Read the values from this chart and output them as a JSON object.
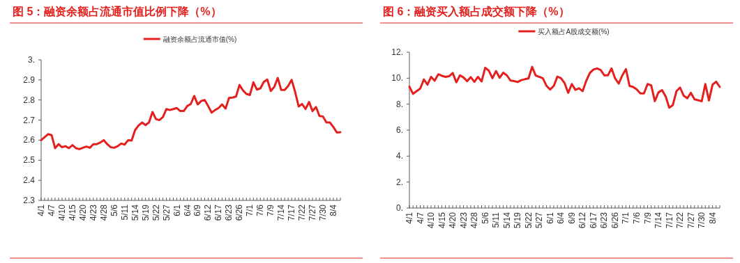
{
  "chart_data": [
    {
      "type": "line",
      "title": "图 5：融资余额占流通市值比例下降（%）",
      "legend": "top",
      "categories": [
        "4/1",
        null,
        null,
        "4/7",
        null,
        null,
        "4/10",
        null,
        null,
        "4/15",
        null,
        null,
        "4/20",
        null,
        null,
        "4/23",
        null,
        null,
        "4/28",
        null,
        null,
        "5/6",
        null,
        null,
        "5/11",
        null,
        null,
        "5/14",
        null,
        null,
        "5/19",
        null,
        null,
        "5/22",
        null,
        null,
        "5/27",
        null,
        null,
        "6/1",
        null,
        null,
        "6/4",
        null,
        null,
        "6/9",
        null,
        null,
        "6/12",
        null,
        null,
        "6/17",
        null,
        null,
        "6/23",
        null,
        null,
        "6/26",
        null,
        null,
        "7/1",
        null,
        null,
        "7/6",
        null,
        null,
        "7/9",
        null,
        null,
        "7/14",
        null,
        null,
        "7/17",
        null,
        null,
        "7/22",
        null,
        null,
        "7/27",
        null,
        null,
        "7/30",
        null,
        null,
        "8/4",
        null,
        null
      ],
      "series": [
        {
          "name": "融资余额占流通市值(%)",
          "color": "#e3201e",
          "values": [
            2.6,
            2.615,
            2.63,
            2.625,
            2.56,
            2.58,
            2.565,
            2.57,
            2.56,
            2.575,
            2.56,
            2.555,
            2.562,
            2.568,
            2.562,
            2.58,
            2.58,
            2.588,
            2.6,
            2.58,
            2.565,
            2.562,
            2.57,
            2.583,
            2.578,
            2.6,
            2.598,
            2.65,
            2.673,
            2.688,
            2.675,
            2.688,
            2.74,
            2.705,
            2.7,
            2.715,
            2.755,
            2.75,
            2.755,
            2.76,
            2.745,
            2.745,
            2.77,
            2.78,
            2.82,
            2.778,
            2.795,
            2.8,
            2.77,
            2.737,
            2.75,
            2.76,
            2.778,
            2.757,
            2.81,
            2.812,
            2.817,
            2.875,
            2.848,
            2.83,
            2.825,
            2.888,
            2.852,
            2.858,
            2.89,
            2.902,
            2.845,
            2.865,
            2.91,
            2.85,
            2.85,
            2.87,
            2.9,
            2.84,
            2.768,
            2.78,
            2.755,
            2.79,
            2.745,
            2.765,
            2.72,
            2.718,
            2.688,
            2.688,
            2.665,
            2.638,
            2.64
          ]
        }
      ],
      "ylim": [
        2.3,
        3
      ],
      "yticks": [
        2.3,
        2.4,
        2.5,
        2.6,
        2.7,
        2.8,
        2.9,
        {
          "value": 3,
          "label": "3."
        }
      ]
    },
    {
      "type": "line",
      "title": "图 6：融资买入额占成交额下降（%）",
      "legend": "top",
      "categories": [
        "4/1",
        null,
        null,
        "4/7",
        null,
        null,
        "4/10",
        null,
        null,
        "4/15",
        null,
        null,
        "4/20",
        null,
        null,
        "4/23",
        null,
        null,
        "4/28",
        null,
        null,
        "5/6",
        null,
        null,
        "5/11",
        null,
        null,
        "5/14",
        null,
        null,
        "5/19",
        null,
        null,
        "5/22",
        null,
        null,
        "5/27",
        null,
        null,
        "6/1",
        null,
        null,
        "6/4",
        null,
        null,
        "6/9",
        null,
        null,
        "6/12",
        null,
        null,
        "6/17",
        null,
        null,
        "6/23",
        null,
        null,
        "6/26",
        null,
        null,
        "7/1",
        null,
        null,
        "7/6",
        null,
        null,
        "7/9",
        null,
        null,
        "7/14",
        null,
        null,
        "7/17",
        null,
        null,
        "7/22",
        null,
        null,
        "7/27",
        null,
        null,
        "7/30",
        null,
        null,
        "8/4",
        null,
        null
      ],
      "series": [
        {
          "name": "买入额占A股成交额(%)",
          "color": "#e3201e",
          "values": [
            9.35,
            8.79,
            9.0,
            9.2,
            9.9,
            9.5,
            10.1,
            9.8,
            10.3,
            10.18,
            10.1,
            10.15,
            10.4,
            9.68,
            10.22,
            10.05,
            9.77,
            10.08,
            9.72,
            10.1,
            9.75,
            10.8,
            10.58,
            10.0,
            10.55,
            10.03,
            10.42,
            10.22,
            9.82,
            9.78,
            9.7,
            9.85,
            9.92,
            9.98,
            10.87,
            10.2,
            10.1,
            9.98,
            9.4,
            9.13,
            9.4,
            10.12,
            10.0,
            9.62,
            8.87,
            9.55,
            9.1,
            9.22,
            9.0,
            9.8,
            10.4,
            10.67,
            10.75,
            10.63,
            10.22,
            10.22,
            10.75,
            9.98,
            9.58,
            10.22,
            10.7,
            9.4,
            9.32,
            9.13,
            8.83,
            8.83,
            9.55,
            9.45,
            8.23,
            8.9,
            9.08,
            8.6,
            7.73,
            7.93,
            9.0,
            9.28,
            8.65,
            8.45,
            8.87,
            8.37,
            8.3,
            8.22,
            9.55,
            8.28,
            9.5,
            9.73,
            9.32
          ]
        }
      ],
      "ylim": [
        0,
        12
      ],
      "yticks": [
        {
          "value": 0,
          "label": "0."
        },
        {
          "value": 2,
          "label": "2."
        },
        {
          "value": 4,
          "label": "4."
        },
        {
          "value": 6,
          "label": "6."
        },
        {
          "value": 8,
          "label": "8."
        },
        {
          "value": 10,
          "label": "10."
        },
        {
          "value": 12,
          "label": "12."
        }
      ]
    }
  ]
}
